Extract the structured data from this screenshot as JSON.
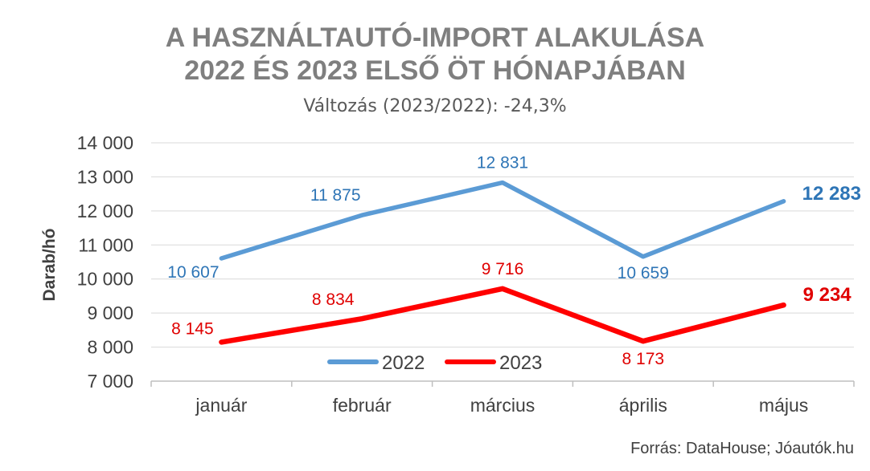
{
  "chart_data": {
    "type": "line",
    "title_lines": [
      "A HASZNÁLTAUTÓ-IMPORT ALAKULÁSA",
      "2022 ÉS 2023 ELSŐ ÖT HÓNAPJÁBAN"
    ],
    "subtitle": "Változás (2023/2022): -24,3%",
    "xlabel": "",
    "ylabel": "Darab/hó",
    "categories": [
      "január",
      "február",
      "március",
      "április",
      "május"
    ],
    "ylim": [
      7000,
      14000
    ],
    "yticks": [
      7000,
      8000,
      9000,
      10000,
      11000,
      12000,
      13000,
      14000
    ],
    "ytick_labels": [
      "7 000",
      "8 000",
      "9 000",
      "10 000",
      "11 000",
      "12 000",
      "13 000",
      "14 000"
    ],
    "grid": "horizontal",
    "legend_position": "bottom-inside",
    "series": [
      {
        "name": "2022",
        "color": "#5b9bd5",
        "values": [
          10607,
          11875,
          12831,
          10659,
          12283
        ],
        "labels": [
          "10 607",
          "11 875",
          "12 831",
          "10 659",
          "12 283"
        ],
        "label_color": "#2e75b6"
      },
      {
        "name": "2023",
        "color": "#ff0000",
        "values": [
          8145,
          8834,
          9716,
          8173,
          9234
        ],
        "labels": [
          "8 145",
          "8 834",
          "9 716",
          "8 173",
          "9 234"
        ],
        "label_color": "#e00000"
      }
    ],
    "source": "Forrás: DataHouse; Jóautók.hu"
  }
}
